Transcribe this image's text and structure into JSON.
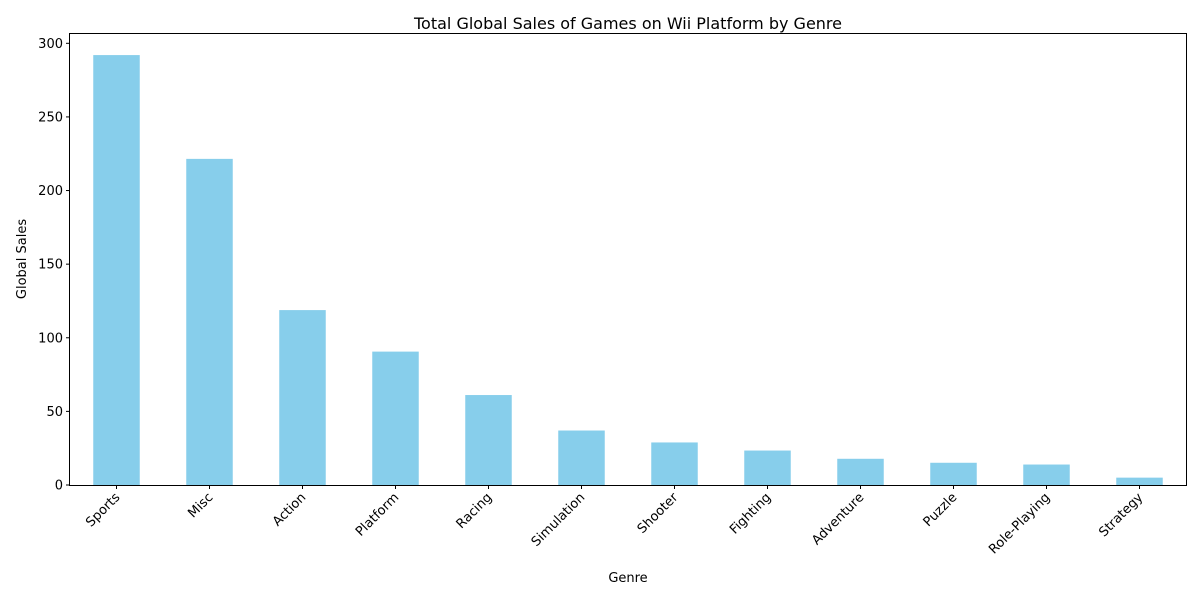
{
  "chart_data": {
    "type": "bar",
    "title": "Total Global Sales of Games on Wii Platform by Genre",
    "xlabel": "Genre",
    "ylabel": "Global Sales",
    "categories": [
      "Sports",
      "Misc",
      "Action",
      "Platform",
      "Racing",
      "Simulation",
      "Shooter",
      "Fighting",
      "Adventure",
      "Puzzle",
      "Role-Playing",
      "Strategy"
    ],
    "values": [
      292.0,
      221.5,
      118.8,
      90.6,
      61.1,
      37.0,
      28.9,
      23.4,
      17.8,
      15.1,
      13.9,
      5.0
    ],
    "ylim": [
      0,
      307
    ],
    "yticks": [
      0,
      50,
      100,
      150,
      200,
      250,
      300
    ],
    "bar_color": "#87ceeb",
    "grid": false,
    "legend": "none"
  }
}
